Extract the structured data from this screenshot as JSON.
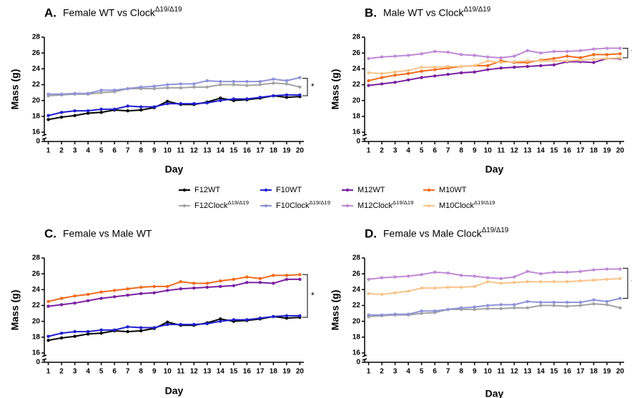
{
  "chart_data": [
    {
      "type": "line",
      "panel": "A.",
      "title": "Female WT vs ClockΔ19/Δ19",
      "xlabel": "Day",
      "ylabel": "Mass (g)",
      "x": [
        1,
        2,
        3,
        4,
        5,
        6,
        7,
        8,
        9,
        10,
        11,
        12,
        13,
        14,
        15,
        16,
        17,
        18,
        19,
        20
      ],
      "xlim": [
        0.7,
        20.3
      ],
      "xticks": [
        1,
        2,
        3,
        4,
        5,
        6,
        7,
        8,
        9,
        10,
        11,
        12,
        13,
        14,
        15,
        16,
        17,
        18,
        19,
        20
      ],
      "ylim": [
        0,
        28
      ],
      "ybreak": [
        0,
        16
      ],
      "yticks": [
        0,
        16,
        18,
        20,
        22,
        24,
        26,
        28
      ],
      "series": [
        {
          "name": "F12WT",
          "color": "#000000",
          "values": [
            17.6,
            17.9,
            18.1,
            18.4,
            18.5,
            18.8,
            18.7,
            18.8,
            19.1,
            19.9,
            19.5,
            19.5,
            19.8,
            20.3,
            20.0,
            20.1,
            20.3,
            20.6,
            20.4,
            20.5
          ]
        },
        {
          "name": "F10WT",
          "color": "#1f1fd0",
          "values": [
            18.1,
            18.5,
            18.7,
            18.7,
            18.9,
            18.9,
            19.3,
            19.2,
            19.2,
            19.6,
            19.6,
            19.6,
            19.7,
            20.0,
            20.2,
            20.2,
            20.4,
            20.6,
            20.7,
            20.7
          ]
        },
        {
          "name": "F12ClockΔ19/Δ19",
          "color": "#a3a3a3",
          "values": [
            20.6,
            20.7,
            20.8,
            20.8,
            21.0,
            21.1,
            21.5,
            21.5,
            21.5,
            21.6,
            21.6,
            21.7,
            21.7,
            22.0,
            22.0,
            21.9,
            22.0,
            22.2,
            22.1,
            21.7
          ]
        },
        {
          "name": "F10ClockΔ19/Δ19",
          "color": "#8e93d8",
          "values": [
            20.8,
            20.8,
            20.9,
            20.9,
            21.3,
            21.3,
            21.5,
            21.7,
            21.8,
            22.0,
            22.1,
            22.1,
            22.5,
            22.4,
            22.4,
            22.4,
            22.4,
            22.7,
            22.5,
            22.9
          ]
        }
      ],
      "annotations": [
        {
          "text": "*",
          "y": [
            20.6,
            22.8
          ]
        }
      ]
    },
    {
      "type": "line",
      "panel": "B.",
      "title": "Male WT vs ClockΔ19/Δ19",
      "xlabel": "Day",
      "ylabel": "Mass (g)",
      "x": [
        1,
        2,
        3,
        4,
        5,
        6,
        7,
        8,
        9,
        10,
        11,
        12,
        13,
        14,
        15,
        16,
        17,
        18,
        19,
        20
      ],
      "xlim": [
        0.7,
        20.3
      ],
      "xticks": [
        1,
        2,
        3,
        4,
        5,
        6,
        7,
        8,
        9,
        10,
        11,
        12,
        13,
        14,
        15,
        16,
        17,
        18,
        19,
        20
      ],
      "ylim": [
        0,
        28
      ],
      "ybreak": [
        0,
        16
      ],
      "yticks": [
        0,
        16,
        18,
        20,
        22,
        24,
        26,
        28
      ],
      "series": [
        {
          "name": "M12WT",
          "color": "#7a1fa0",
          "values": [
            21.9,
            22.1,
            22.3,
            22.6,
            22.9,
            23.1,
            23.3,
            23.5,
            23.6,
            23.9,
            24.1,
            24.2,
            24.3,
            24.4,
            24.5,
            24.9,
            24.9,
            24.8,
            25.3,
            25.3
          ]
        },
        {
          "name": "M10WT",
          "color": "#f26a1b",
          "values": [
            22.5,
            22.9,
            23.2,
            23.4,
            23.7,
            23.9,
            24.1,
            24.3,
            24.4,
            24.4,
            25.0,
            24.8,
            24.8,
            25.1,
            25.3,
            25.6,
            25.4,
            25.8,
            25.8,
            25.9
          ]
        },
        {
          "name": "M12ClockΔ19/Δ19",
          "color": "#c08ad6",
          "values": [
            25.3,
            25.5,
            25.6,
            25.7,
            25.9,
            26.2,
            26.1,
            25.8,
            25.7,
            25.5,
            25.4,
            25.6,
            26.3,
            26.0,
            26.2,
            26.2,
            26.3,
            26.5,
            26.6,
            26.6
          ]
        },
        {
          "name": "M10ClockΔ19/Δ19",
          "color": "#f8c48a",
          "values": [
            23.5,
            23.4,
            23.6,
            23.8,
            24.2,
            24.2,
            24.3,
            24.3,
            24.4,
            25.0,
            24.8,
            24.9,
            25.0,
            25.0,
            25.0,
            25.0,
            25.1,
            25.2,
            25.3,
            25.4
          ]
        }
      ],
      "annotations": [
        {
          "text": "*",
          "y": [
            25.4,
            26.6
          ]
        }
      ]
    },
    {
      "type": "line",
      "panel": "C.",
      "title": "Female vs Male WT",
      "xlabel": "Day",
      "ylabel": "Mass (g)",
      "x": [
        1,
        2,
        3,
        4,
        5,
        6,
        7,
        8,
        9,
        10,
        11,
        12,
        13,
        14,
        15,
        16,
        17,
        18,
        19,
        20
      ],
      "xlim": [
        0.7,
        20.3
      ],
      "xticks": [
        1,
        2,
        3,
        4,
        5,
        6,
        7,
        8,
        9,
        10,
        11,
        12,
        13,
        14,
        15,
        16,
        17,
        18,
        19,
        20
      ],
      "ylim": [
        0,
        28
      ],
      "ybreak": [
        0,
        16
      ],
      "yticks": [
        0,
        16,
        18,
        20,
        22,
        24,
        26,
        28
      ],
      "series": [
        {
          "name": "F12WT",
          "color": "#000000",
          "values": [
            17.6,
            17.9,
            18.1,
            18.4,
            18.5,
            18.8,
            18.7,
            18.8,
            19.1,
            19.9,
            19.5,
            19.5,
            19.8,
            20.3,
            20.0,
            20.1,
            20.3,
            20.6,
            20.4,
            20.5
          ]
        },
        {
          "name": "F10WT",
          "color": "#1f1fd0",
          "values": [
            18.1,
            18.5,
            18.7,
            18.7,
            18.9,
            18.9,
            19.3,
            19.2,
            19.2,
            19.6,
            19.6,
            19.6,
            19.7,
            20.0,
            20.2,
            20.2,
            20.4,
            20.6,
            20.7,
            20.7
          ]
        },
        {
          "name": "M12WT",
          "color": "#7a1fa0",
          "values": [
            21.9,
            22.1,
            22.3,
            22.6,
            22.9,
            23.1,
            23.3,
            23.5,
            23.6,
            23.9,
            24.1,
            24.2,
            24.3,
            24.4,
            24.5,
            24.9,
            24.9,
            24.8,
            25.3,
            25.3
          ]
        },
        {
          "name": "M10WT",
          "color": "#f26a1b",
          "values": [
            22.5,
            22.9,
            23.2,
            23.4,
            23.7,
            23.9,
            24.1,
            24.3,
            24.4,
            24.4,
            25.0,
            24.8,
            24.8,
            25.1,
            25.3,
            25.6,
            25.4,
            25.8,
            25.8,
            25.9
          ]
        }
      ],
      "annotations": [
        {
          "text": "*",
          "y": [
            20.5,
            25.9
          ]
        }
      ]
    },
    {
      "type": "line",
      "panel": "D.",
      "title": "Female vs Male ClockΔ19/Δ19",
      "xlabel": "Day",
      "ylabel": "Mass (g)",
      "x": [
        1,
        2,
        3,
        4,
        5,
        6,
        7,
        8,
        9,
        10,
        11,
        12,
        13,
        14,
        15,
        16,
        17,
        18,
        19,
        20
      ],
      "xlim": [
        0.7,
        20.3
      ],
      "xticks": [
        1,
        2,
        3,
        4,
        5,
        6,
        7,
        8,
        9,
        10,
        11,
        12,
        13,
        14,
        15,
        16,
        17,
        18,
        19,
        20
      ],
      "ylim": [
        0,
        28
      ],
      "ybreak": [
        0,
        16
      ],
      "yticks": [
        0,
        16,
        18,
        20,
        22,
        24,
        26,
        28
      ],
      "series": [
        {
          "name": "F12ClockΔ19/Δ19",
          "color": "#a3a3a3",
          "values": [
            20.6,
            20.7,
            20.8,
            20.8,
            21.0,
            21.1,
            21.5,
            21.5,
            21.5,
            21.6,
            21.6,
            21.7,
            21.7,
            22.0,
            22.0,
            21.9,
            22.0,
            22.2,
            22.1,
            21.7
          ]
        },
        {
          "name": "F10ClockΔ19/Δ19",
          "color": "#8e93d8",
          "values": [
            20.8,
            20.8,
            20.9,
            20.9,
            21.3,
            21.3,
            21.5,
            21.7,
            21.8,
            22.0,
            22.1,
            22.1,
            22.5,
            22.4,
            22.4,
            22.4,
            22.4,
            22.7,
            22.5,
            22.9
          ]
        },
        {
          "name": "M12ClockΔ19/Δ19",
          "color": "#c08ad6",
          "values": [
            25.3,
            25.5,
            25.6,
            25.7,
            25.9,
            26.2,
            26.1,
            25.8,
            25.7,
            25.5,
            25.4,
            25.6,
            26.3,
            26.0,
            26.2,
            26.2,
            26.3,
            26.5,
            26.6,
            26.6
          ]
        },
        {
          "name": "M10ClockΔ19/Δ19",
          "color": "#f8c48a",
          "values": [
            23.5,
            23.4,
            23.6,
            23.8,
            24.2,
            24.2,
            24.3,
            24.3,
            24.4,
            25.0,
            24.8,
            24.9,
            25.0,
            25.0,
            25.0,
            25.0,
            25.1,
            25.2,
            25.3,
            25.4
          ]
        }
      ],
      "annotations": [
        {
          "text": "*",
          "y": [
            22.9,
            26.7
          ]
        }
      ]
    }
  ]
}
